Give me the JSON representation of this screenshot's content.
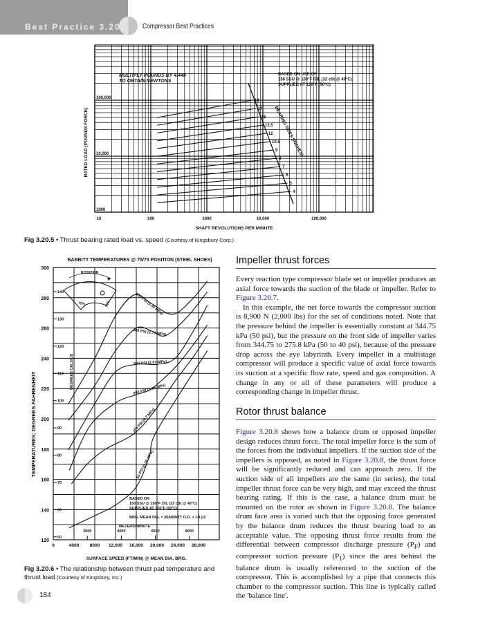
{
  "header": {
    "section": "Best Practice 3.20",
    "book_title": "Compressor Best Practices"
  },
  "fig1": {
    "caption_label": "Fig 3.20.5",
    "caption_text": "Thrust bearing rated load vs. speed",
    "caption_credit": "(Courtesy of Kingsbury Corp.)"
  },
  "fig2": {
    "caption_label": "Fig 3.20.6",
    "caption_text": "The relationship between thrust pad temperature and thrust load",
    "caption_credit": "(Courtesy of Kingsbury, Inc.)"
  },
  "section1": {
    "heading": "Impeller thrust forces",
    "p1_a": "Every reaction type compressor blade set or impeller produces an axial force towards the suction of the blade or impeller. Refer to ",
    "p1_link": "Figure 3.20.7",
    "p1_b": ".",
    "p2": "In this example, the net force towards the compressor suction is 8,900 N (2,000 lbs) for the set of conditions noted. Note that the pressure behind the impeller is essentially constant at 344.75 kPa (50 psi), but the pressure on the front side of impeller varies from 344.75 to 275.8 kPa (50 to 40 psi), because of the pressure drop across the eye labyrinth. Every impeller in a multistage compressor will produce a specific value of axial force towards its suction at a specific flow rate, speed and gas composition. A change in any or all of these parameters will produce a corresponding change in impeller thrust."
  },
  "section2": {
    "heading": "Rotor thrust balance",
    "link1": "Figure 3.20.8",
    "t1": " shows how a balance drum or opposed impeller design reduces thrust force. The total impeller force is the sum of the forces from the individual impellers. If the suction side of the impellers is opposed, as noted in ",
    "link2": "Figure 3.20.8",
    "t2": ", the thrust force will be significantly reduced and can approach zero. If the suction side of all impellers are the same (in series), the total impeller thrust force can be very high, and may exceed the thrust bearing rating. If this is the case, a balance drum must be mounted on the rotor as shown in ",
    "link3": "Figure 3.20.8",
    "t3": ". The balance drum face area is varied such that the opposing force generated by the balance drum reduces the thrust bearing load to an acceptable value. The opposing thrust force results from the differential between compressor discharge pressure (P",
    "sub1": "F",
    "t4": ") and compressor suction pressure (P",
    "sub2": "1",
    "t5": ") since the area behind the balance drum is usually referenced to the suction of the compressor. This is accomplished by a pipe that connects this chamber to the compressor suction. This line is typically called the 'balance line'."
  },
  "footer": {
    "page_number": "184"
  },
  "colors": {
    "header_bg": "#9c9c9c",
    "link": "#1f2a8c"
  },
  "chart_data": [
    {
      "type": "line",
      "title": "",
      "xlabel": "SHAFT REVOLUTIONS PER MINUTE",
      "ylabel": "RATED LOAD (POUNDS FORCE)",
      "xscale": "log",
      "yscale": "log",
      "xlim": [
        10,
        1000000
      ],
      "ylim": [
        1000,
        1000000
      ],
      "grid": true,
      "x_ticks": [
        {
          "v": 10,
          "label": "10"
        },
        {
          "v": 100,
          "label": "100"
        },
        {
          "v": 1000,
          "label": "1000"
        },
        {
          "v": 10000,
          "label": "10,000"
        },
        {
          "v": 100000,
          "label": "100,000"
        }
      ],
      "y_ticks": [
        {
          "v": 1000,
          "label": "1000"
        },
        {
          "v": 10000,
          "label": "10,000"
        },
        {
          "v": 100000,
          "label": "100,000"
        }
      ],
      "note_left": [
        "MULTIPLY POUNDS BY 4.448",
        "TO OBTAIN NEWTONS"
      ],
      "note_right": [
        "BASED ON USE OF",
        "150 SSU @ 100°F OIL (32 cSt @ 40°C)",
        "SUPPLIED AT 120°F (50°C)"
      ],
      "limit_label": "BEARING SIZES (INCHES)",
      "limit_line": {
        "x": [
          5500,
          35000
        ],
        "y": [
          200000,
          1400
        ]
      },
      "series": [
        {
          "name": "4",
          "x": [
            130,
            31600
          ],
          "y": [
            1480,
            2340
          ]
        },
        {
          "name": "5",
          "x": [
            130,
            27400
          ],
          "y": [
            2030,
            3300
          ]
        },
        {
          "name": "6",
          "x": [
            130,
            23700
          ],
          "y": [
            2790,
            4630
          ]
        },
        {
          "name": "7",
          "x": [
            130,
            20500
          ],
          "y": [
            3840,
            6530
          ]
        },
        {
          "name": "8",
          "x": [
            130,
            17700
          ],
          "y": [
            5280,
            9190
          ]
        },
        {
          "name": "9",
          "x": [
            130,
            15300
          ],
          "y": [
            7260,
            12900
          ]
        },
        {
          "name": "10.5",
          "x": [
            130,
            13300
          ],
          "y": [
            9980,
            18200
          ]
        },
        {
          "name": "12",
          "x": [
            130,
            11500
          ],
          "y": [
            13700,
            25500
          ]
        },
        {
          "name": "13.5",
          "x": [
            130,
            9950
          ],
          "y": [
            18800,
            35900
          ]
        },
        {
          "name": "15",
          "x": [
            130,
            8610
          ],
          "y": [
            26000,
            50600
          ]
        },
        {
          "name": "17",
          "x": [
            130,
            7460
          ],
          "y": [
            35700,
            71100
          ]
        },
        {
          "name": "19",
          "x": [
            130,
            6460
          ],
          "y": [
            49000,
            100000
          ]
        }
      ]
    },
    {
      "type": "line",
      "title": "BABBITT TEMPERATURES @ 75/75 POSITION (STEEL SHOES)",
      "xlabel": "SURFACE SPEED (FT/MIN) @ MEAN DIA. BRG.",
      "ylabel": "TEMPERATURES; DEGREES FAHRENHEIT",
      "xlim": [
        0,
        32000
      ],
      "ylim": [
        120,
        300
      ],
      "grid": true,
      "x_ticks": [
        {
          "v": 0,
          "label": "0"
        },
        {
          "v": 4000,
          "label": "4000"
        },
        {
          "v": 8000,
          "label": "8000"
        },
        {
          "v": 12000,
          "label": "12,000"
        },
        {
          "v": 16000,
          "label": "16,000"
        },
        {
          "v": 20000,
          "label": "20,000"
        },
        {
          "v": 24000,
          "label": "24,000"
        },
        {
          "v": 28000,
          "label": "28,000"
        }
      ],
      "y_ticks": [
        120,
        140,
        160,
        180,
        200,
        220,
        240,
        260,
        280,
        300
      ],
      "secondary_y_label": "DEGREES CELSIUS",
      "secondary_y_ticks": [
        50,
        60,
        70,
        80,
        90,
        100,
        110,
        120,
        130,
        140
      ],
      "secondary_x_label": "METERS/MINUTE",
      "secondary_x_ticks": [
        2000,
        4000,
        6000,
        8000
      ],
      "inset": {
        "label": "ROTATION",
        "pct1": "75%",
        "pct2": "75%"
      },
      "notes": [
        "BASED ON",
        "150 SSU @ 100°F OIL (32 cSt @ 40°C)",
        "SUPPLIED AT 120°F (50°C)",
        "BRG. MEAN DIA. = (BABBITT O.D. + I.D.)/2"
      ],
      "series": [
        {
          "name": "500 PSI (3.45 MPa)",
          "x": [
            2930,
            8000,
            12000,
            15700,
            19000,
            23000,
            26500,
            29700
          ],
          "y": [
            210,
            240,
            268,
            282,
            276,
            269,
            278,
            291
          ]
        },
        {
          "name": "400 PSI (2.76 MPa)",
          "x": [
            2930,
            8000,
            12000,
            16000,
            19000,
            21700,
            26000,
            29700
          ],
          "y": [
            199,
            222,
            245,
            260,
            258,
            255,
            268,
            284
          ]
        },
        {
          "name": "300 PSI (2.07 MPa)",
          "x": [
            2930,
            8000,
            12000,
            16000,
            20000,
            23500,
            27000,
            29700
          ],
          "y": [
            179.5,
            210,
            231,
            236,
            236,
            240,
            258,
            275
          ]
        },
        {
          "name": "200 PSI (1.38 MPa)",
          "x": [
            3070,
            7000,
            12000,
            16000,
            19000,
            23500,
            27000,
            29700
          ],
          "y": [
            166,
            195,
            210.5,
            216,
            220,
            234,
            249,
            262
          ]
        },
        {
          "name": "100 PSI (0.7 MPa)",
          "x": [
            3500,
            6500,
            10100,
            15500,
            19500,
            23500,
            27000,
            29700
          ],
          "y": [
            157,
            170,
            180,
            190,
            205,
            225,
            241,
            255
          ]
        },
        {
          "name": "50 PSI (0.35 MPa)",
          "x": [
            3070,
            8000,
            12000,
            16000,
            18500,
            19500,
            25000,
            29700
          ],
          "y": [
            128,
            136,
            143,
            155,
            175,
            189,
            220,
            245
          ]
        }
      ]
    }
  ]
}
